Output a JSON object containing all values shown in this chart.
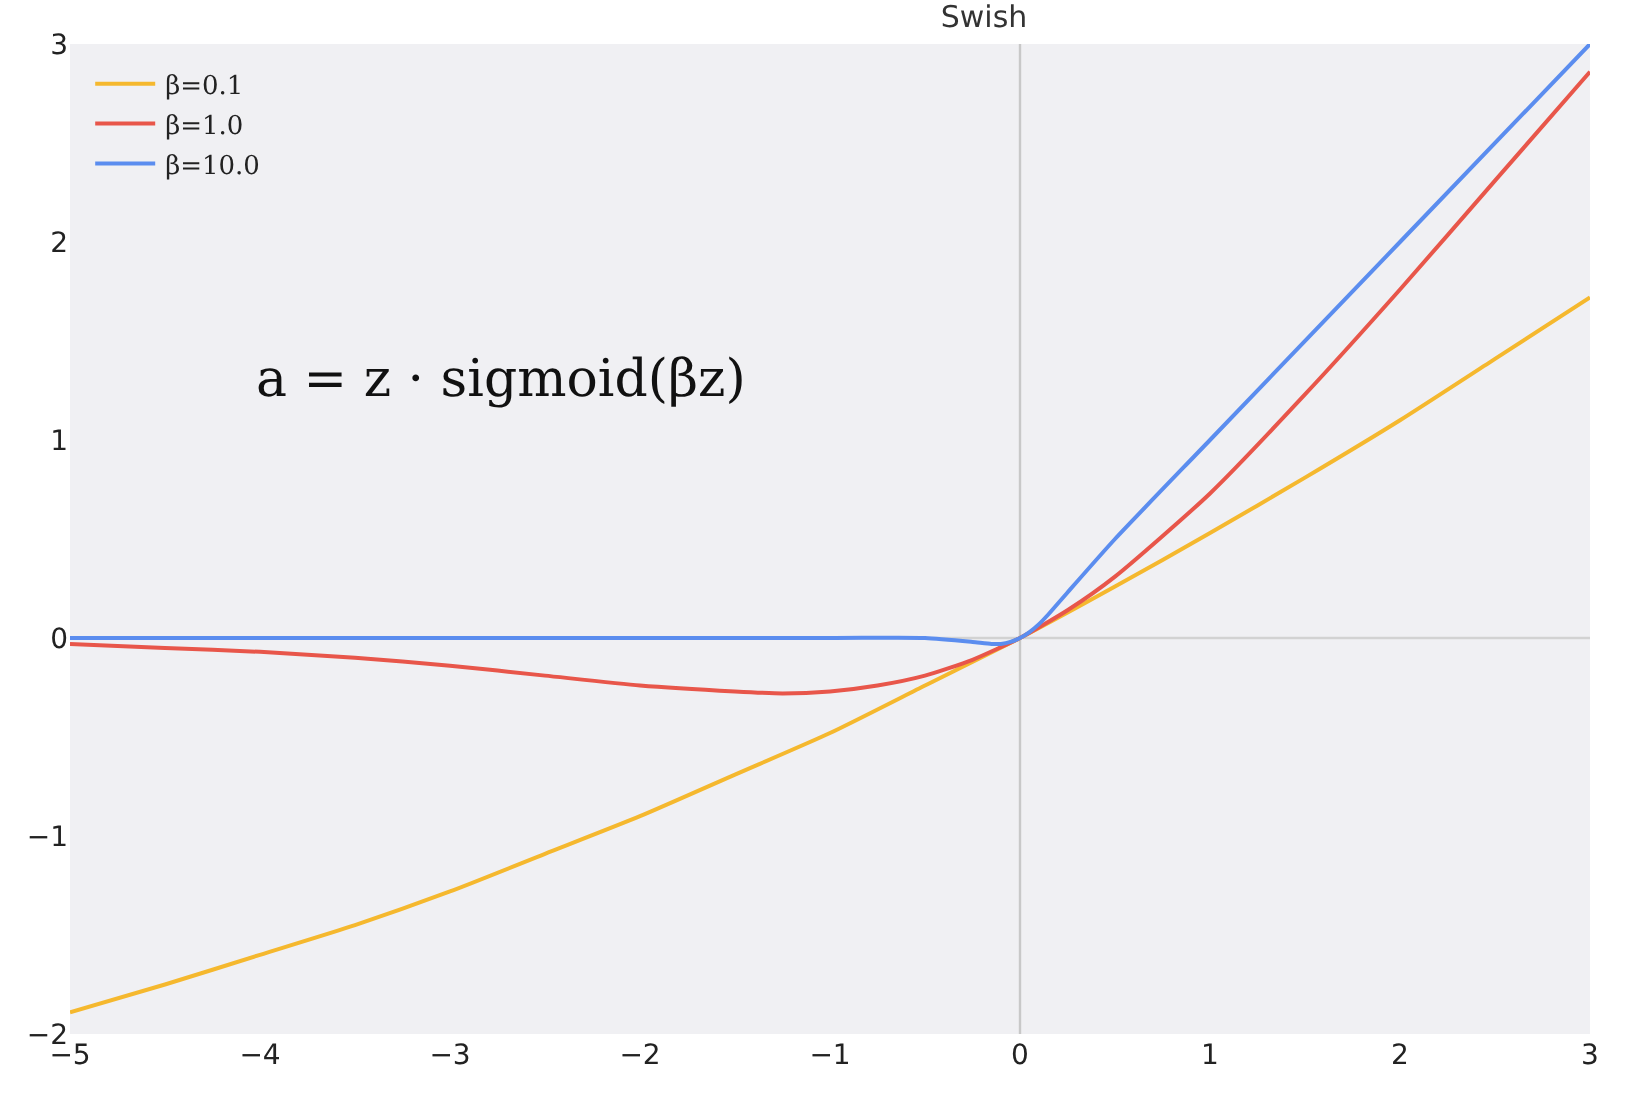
{
  "chart_data": {
    "type": "line",
    "title": "Swish",
    "annotations": [
      "a = z · sigmoid(βz)"
    ],
    "series": [
      {
        "name": "β=0.1",
        "color": "#f5b82e",
        "x": [
          -5,
          -4.5,
          -4,
          -3.5,
          -3,
          -2.5,
          -2,
          -1.5,
          -1,
          -0.5,
          0,
          0.5,
          1,
          1.5,
          2,
          2.5,
          3
        ],
        "values": [
          -1.89,
          -1.75,
          -1.6,
          -1.45,
          -1.28,
          -1.09,
          -0.9,
          -0.69,
          -0.48,
          -0.24,
          0,
          0.26,
          0.53,
          0.81,
          1.1,
          1.41,
          1.72
        ]
      },
      {
        "name": "β=1.0",
        "color": "#e8564a",
        "x": [
          -5,
          -4.5,
          -4,
          -3.5,
          -3,
          -2.5,
          -2,
          -1.5,
          -1.25,
          -1,
          -0.75,
          -0.5,
          -0.25,
          0,
          0.25,
          0.5,
          1,
          1.5,
          2,
          2.5,
          3
        ],
        "values": [
          -0.03,
          -0.05,
          -0.07,
          -0.1,
          -0.14,
          -0.19,
          -0.24,
          -0.27,
          -0.28,
          -0.27,
          -0.24,
          -0.19,
          -0.11,
          0,
          0.14,
          0.31,
          0.73,
          1.23,
          1.76,
          2.31,
          2.86
        ]
      },
      {
        "name": "β=10.0",
        "color": "#5b8def",
        "x": [
          -5,
          -1,
          -0.5,
          -0.25,
          -0.15,
          -0.1,
          -0.05,
          0,
          0.05,
          0.1,
          0.15,
          0.25,
          0.5,
          1,
          2,
          3
        ],
        "values": [
          0,
          0,
          0,
          -0.02,
          -0.03,
          -0.03,
          -0.02,
          0,
          0.03,
          0.07,
          0.12,
          0.23,
          0.5,
          1,
          2,
          3
        ]
      }
    ],
    "xlim": [
      -5,
      3
    ],
    "xticks": [
      -5,
      -4,
      -3,
      -2,
      -1,
      0,
      1,
      2,
      3
    ],
    "ylim": [
      -2,
      3
    ],
    "yticks": [
      -2,
      -1,
      0,
      1,
      2,
      3
    ],
    "ref_lines": [
      {
        "axis": "x",
        "value": 0,
        "color": "#c8c8c8"
      },
      {
        "axis": "y",
        "value": 0,
        "color": "#d2d2d2"
      }
    ],
    "grid": false,
    "legend": "top left",
    "marker": "none",
    "line_style": "solid"
  }
}
